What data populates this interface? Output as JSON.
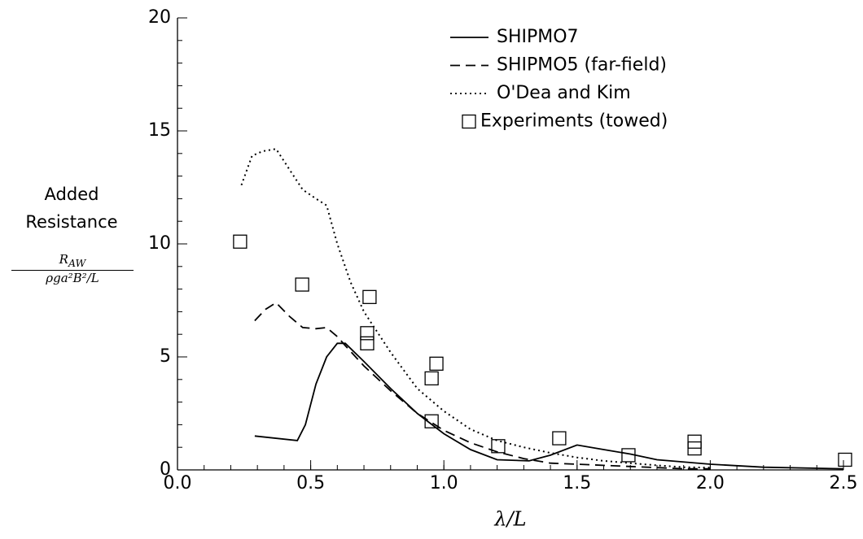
{
  "chart_data": {
    "type": "line",
    "ylabel": "Added Resistance",
    "ylabel_formula": {
      "numerator": "R",
      "numerator_sub": "AW",
      "denominator": "ρga²B²/L"
    },
    "xlabel": "λ/L",
    "xlim": [
      0,
      2.5
    ],
    "ylim": [
      0,
      20
    ],
    "xticks": [
      {
        "value": 0,
        "label": "0.0"
      },
      0.5,
      {
        "value": 1,
        "label": "1.0"
      },
      1.5,
      {
        "value": 2,
        "label": "2.0"
      },
      2.5
    ],
    "yticks": [
      0,
      5,
      10,
      15,
      20
    ],
    "legend": "upper right",
    "series": [
      {
        "name": "SHIPMO7",
        "color": "#000000",
        "style": "solid",
        "x": [
          0.29,
          0.45,
          0.48,
          0.52,
          0.56,
          0.6,
          0.63,
          0.7,
          0.8,
          0.9,
          1.0,
          1.1,
          1.2,
          1.32,
          1.4,
          1.5,
          1.6,
          1.7,
          1.8,
          2.0,
          2.2,
          2.5
        ],
        "values": [
          1.5,
          1.3,
          2.0,
          3.8,
          5.0,
          5.6,
          5.6,
          4.8,
          3.6,
          2.5,
          1.6,
          0.9,
          0.45,
          0.4,
          0.65,
          1.1,
          0.9,
          0.7,
          0.45,
          0.25,
          0.12,
          0.05
        ]
      },
      {
        "name": "SHIPMO5 (far-field)",
        "color": "#000000",
        "style": "dashed",
        "x": [
          0.29,
          0.33,
          0.37,
          0.42,
          0.47,
          0.52,
          0.56,
          0.6,
          0.63,
          0.7,
          0.8,
          0.9,
          1.0,
          1.1,
          1.2,
          1.3,
          1.4,
          1.5,
          1.7,
          1.9,
          2.0
        ],
        "values": [
          6.6,
          7.1,
          7.4,
          6.8,
          6.3,
          6.25,
          6.3,
          5.9,
          5.5,
          4.6,
          3.5,
          2.5,
          1.75,
          1.2,
          0.8,
          0.5,
          0.3,
          0.25,
          0.15,
          0.05,
          0.05
        ]
      },
      {
        "name": "O'Dea and Kim",
        "color": "#000000",
        "style": "dotted",
        "x": [
          0.24,
          0.28,
          0.32,
          0.37,
          0.42,
          0.47,
          0.52,
          0.56,
          0.6,
          0.65,
          0.7,
          0.8,
          0.9,
          1.0,
          1.1,
          1.2,
          1.3,
          1.4,
          1.5,
          1.6,
          1.7,
          1.8,
          1.9,
          2.0
        ],
        "values": [
          12.6,
          13.9,
          14.1,
          14.2,
          13.3,
          12.4,
          12.0,
          11.7,
          10.0,
          8.3,
          7.0,
          5.2,
          3.6,
          2.6,
          1.8,
          1.3,
          1.0,
          0.75,
          0.55,
          0.4,
          0.3,
          0.2,
          0.12,
          0.1
        ]
      },
      {
        "name": "Experiments (towed)",
        "color": "#000000",
        "style": "marker",
        "x": [
          0.235,
          0.468,
          0.721,
          0.712,
          0.712,
          0.972,
          0.954,
          0.954,
          1.204,
          1.433,
          1.693,
          1.941,
          1.941,
          2.506
        ],
        "values": [
          10.1,
          8.2,
          7.65,
          6.05,
          5.6,
          4.7,
          4.05,
          2.15,
          1.05,
          1.4,
          0.65,
          1.25,
          0.95,
          0.45
        ]
      }
    ]
  }
}
